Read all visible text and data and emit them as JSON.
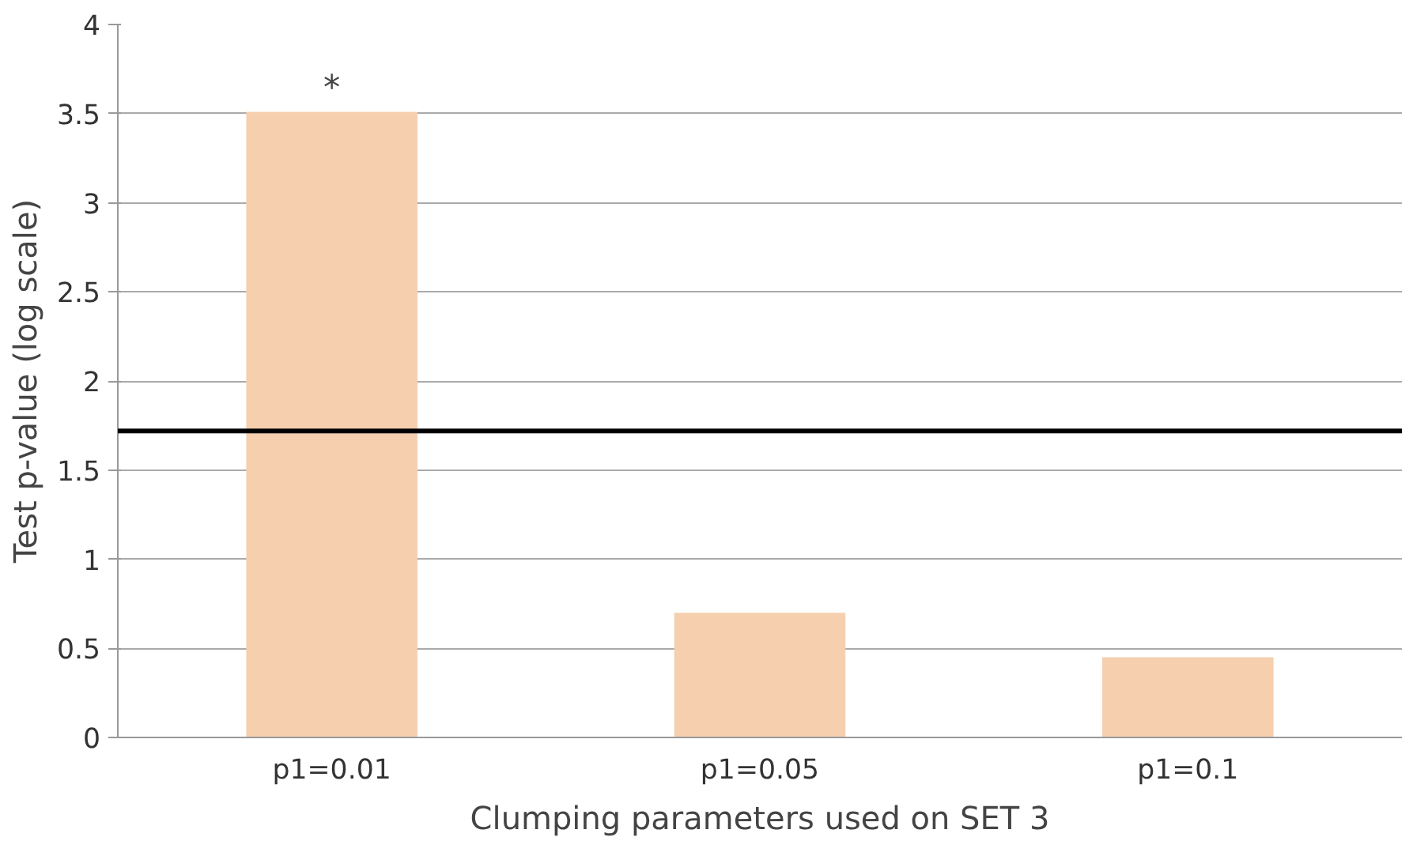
{
  "chart_data": {
    "type": "bar",
    "xlabel": "Clumping parameters used on SET 3",
    "ylabel": "Test p-value (log scale)",
    "categories": [
      "p1=0.01",
      "p1=0.05",
      "p1=0.1"
    ],
    "values": [
      3.51,
      0.7,
      0.45
    ],
    "color": "#f5cfae",
    "ylim": [
      0,
      4
    ],
    "yticks": [
      0,
      0.5,
      1,
      1.5,
      2,
      2.5,
      3,
      3.5,
      4
    ],
    "grid": "y",
    "ref_lines": [
      {
        "axis": "y",
        "value": 1.72,
        "color": "#000000"
      }
    ],
    "annotations": [
      {
        "text": "*",
        "x": "p1=0.01",
        "y": 3.51
      }
    ]
  }
}
